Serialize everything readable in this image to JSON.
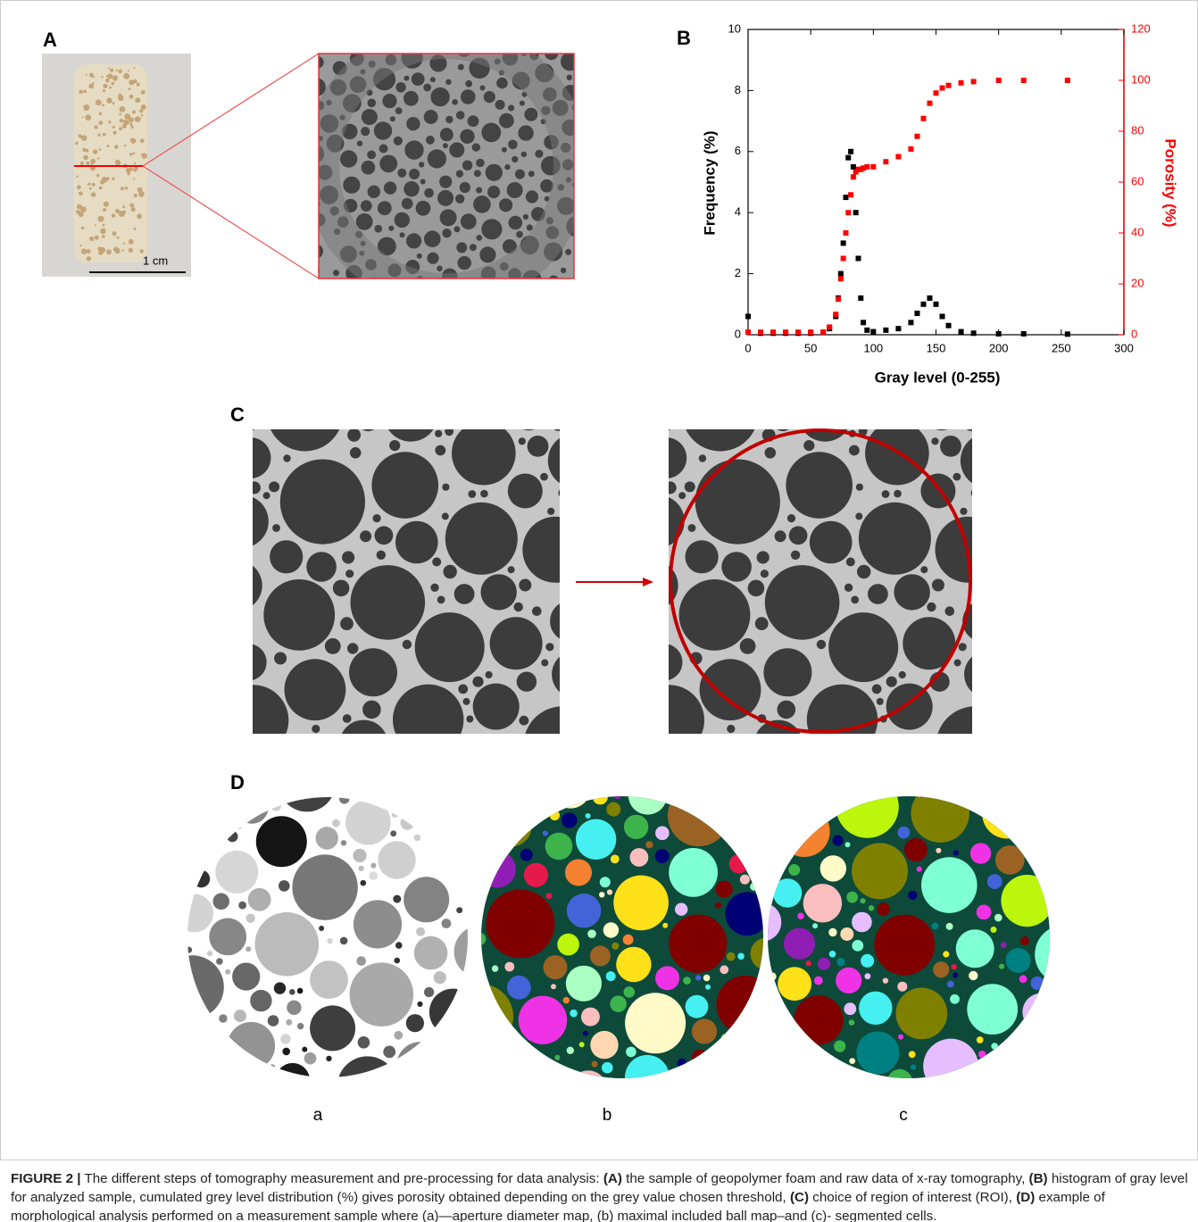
{
  "panels": {
    "A": {
      "label": "A",
      "scale_bar": "1 cm"
    },
    "B": {
      "label": "B"
    },
    "C": {
      "label": "C"
    },
    "D": {
      "label": "D",
      "sublabels": [
        "a",
        "b",
        "c"
      ]
    }
  },
  "chart_data": {
    "type": "scatter",
    "x_label": "Gray level (0-255)",
    "y_label": "Frequency (%)",
    "y2_label": "Porosity (%)",
    "x": [
      0,
      10,
      20,
      30,
      40,
      50,
      60,
      65,
      70,
      72,
      74,
      76,
      78,
      80,
      82,
      84,
      86,
      88,
      90,
      92,
      95,
      100,
      110,
      120,
      130,
      135,
      140,
      145,
      150,
      155,
      160,
      170,
      180,
      200,
      220,
      255
    ],
    "series": [
      {
        "color": "#000000",
        "values": [
          0.6,
          0.05,
          0.05,
          0.05,
          0.05,
          0.05,
          0.08,
          0.2,
          0.6,
          1.2,
          2,
          3,
          4.5,
          5.8,
          6,
          5.5,
          4,
          2.5,
          1.2,
          0.4,
          0.15,
          0.1,
          0.15,
          0.2,
          0.4,
          0.7,
          1.0,
          1.2,
          1.0,
          0.6,
          0.3,
          0.1,
          0.05,
          0.03,
          0.03,
          0.02
        ]
      },
      {
        "color": "#ff0000",
        "axis": "y2",
        "values": [
          1,
          1,
          1,
          1,
          1,
          1,
          1,
          3,
          8,
          14,
          22,
          30,
          40,
          48,
          55,
          62,
          64,
          65,
          65,
          65.5,
          66,
          66,
          68,
          70,
          73,
          78,
          85,
          91,
          95,
          97,
          98,
          99,
          99.5,
          100,
          100,
          100
        ]
      }
    ],
    "xlim": [
      0,
      300
    ],
    "xticks": [
      0,
      50,
      100,
      150,
      200,
      250,
      300
    ],
    "ylim": [
      0,
      10
    ],
    "yticks": [
      0,
      2,
      4,
      6,
      8,
      10
    ],
    "y2lim": [
      0,
      120
    ],
    "y2ticks": [
      0,
      20,
      40,
      60,
      80,
      100,
      120
    ]
  },
  "caption": [
    "FIGURE 2 |",
    " The different steps of tomography measurement and pre-processing for data analysis: ",
    "(A)",
    " the sample of geopolymer foam and raw data of x-ray tomography, ",
    "(B)",
    " histogram of gray level for analyzed sample, cumulated grey level distribution (%) gives porosity obtained depending on the grey value chosen threshold, ",
    "(C)",
    " choice of region of interest (ROI), ",
    "(D)",
    " example of morphological analysis performed on a measurement sample where (a)—aperture diameter map, (b) maximal included ball map–and (c)- segmented cells."
  ]
}
